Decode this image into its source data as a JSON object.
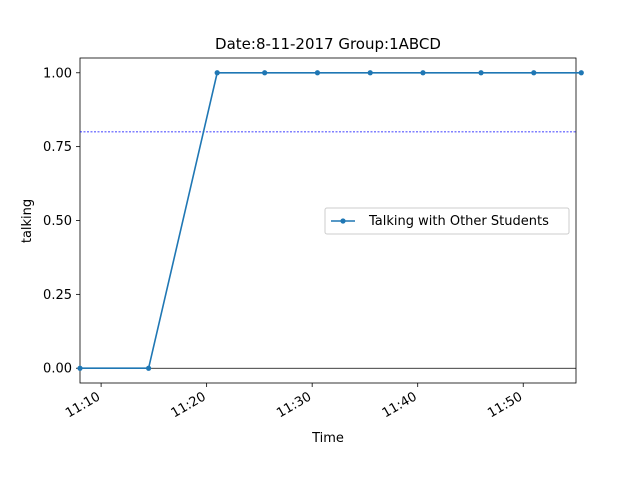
{
  "chart_data": {
    "type": "line",
    "title": "Date:8-11-2017  Group:1ABCD",
    "xlabel": "Time",
    "ylabel": "talking",
    "x_axis_unit": "time of day (HH:MM)",
    "xlim": [
      "11:08",
      "11:55"
    ],
    "ylim": [
      -0.05,
      1.05
    ],
    "x_ticks": [
      "11:10",
      "11:20",
      "11:30",
      "11:40",
      "11:50"
    ],
    "y_ticks": [
      "0.00",
      "0.25",
      "0.50",
      "0.75",
      "1.00"
    ],
    "reference_lines": [
      {
        "y": 0.8,
        "style": "dotted",
        "color": "#0000ff"
      },
      {
        "y": 0.0,
        "style": "solid",
        "color": "#000000"
      }
    ],
    "legend_position": "center-right",
    "grid": false,
    "series": [
      {
        "name": "Talking with Other Students",
        "color": "#1f77b4",
        "marker": "dot",
        "x": [
          "11:08",
          "11:14.5",
          "11:21",
          "11:25.5",
          "11:30.5",
          "11:35.5",
          "11:40.5",
          "11:46",
          "11:51",
          "11:55.5"
        ],
        "y": [
          0,
          0,
          1,
          1,
          1,
          1,
          1,
          1,
          1,
          1
        ]
      }
    ]
  }
}
